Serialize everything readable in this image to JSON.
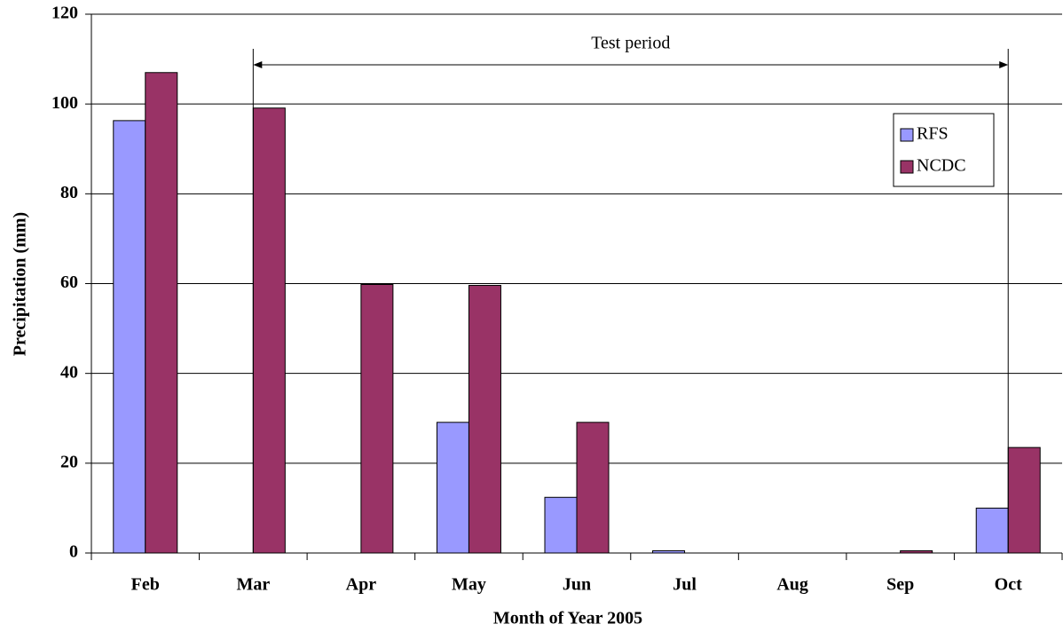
{
  "chart_data": {
    "type": "bar",
    "categories": [
      "Feb",
      "Mar",
      "Apr",
      "May",
      "Jun",
      "Jul",
      "Aug",
      "Sep",
      "Oct"
    ],
    "series": [
      {
        "name": "RFS",
        "color": "#9999ff",
        "values": [
          96.3,
          0,
          0,
          29.1,
          12.4,
          0.5,
          0,
          0,
          10
        ]
      },
      {
        "name": "NCDC",
        "color": "#993366",
        "values": [
          107,
          99.1,
          59.8,
          59.6,
          29.1,
          0,
          0,
          0.5,
          23.5
        ]
      }
    ],
    "ylim": [
      0,
      120
    ],
    "yticks": [
      0,
      20,
      40,
      60,
      80,
      100,
      120
    ],
    "grid": true,
    "ylabel": "Precipitation (mm)",
    "xlabel": "Month of Year 2005",
    "annotation": "Test period",
    "legend": "upper right"
  }
}
